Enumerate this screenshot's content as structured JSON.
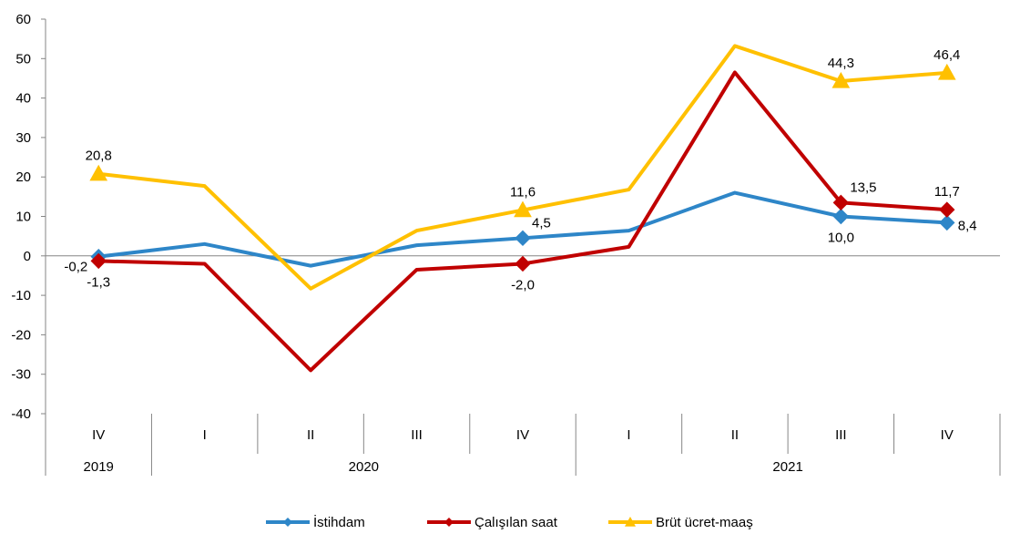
{
  "chart_data": {
    "type": "line",
    "title": "",
    "xlabel": "",
    "ylabel": "",
    "ylim": [
      -40,
      60
    ],
    "yticks": [
      -40,
      -30,
      -20,
      -10,
      0,
      10,
      20,
      30,
      40,
      50,
      60
    ],
    "ytick_labels": [
      "-40",
      "-30",
      "-20",
      "-10",
      "0",
      "10",
      "20",
      "30",
      "40",
      "50",
      "60"
    ],
    "grid": false,
    "legend_position": "bottom",
    "categories": [
      "IV",
      "I",
      "II",
      "III",
      "IV",
      "I",
      "II",
      "III",
      "IV"
    ],
    "year_groups": [
      {
        "label": "2019",
        "span": 1
      },
      {
        "label": "2020",
        "span": 4
      },
      {
        "label": "2021",
        "span": 4
      }
    ],
    "series": [
      {
        "name": "İstihdam",
        "color": "#2E86C8",
        "marker": "diamond",
        "values": [
          -0.2,
          3.0,
          -2.5,
          2.7,
          4.5,
          6.4,
          16.0,
          10.0,
          8.4
        ],
        "markers_at": [
          0,
          4,
          7,
          8
        ],
        "labels": [
          {
            "index": 0,
            "text": "-0,2",
            "pos": "left"
          },
          {
            "index": 4,
            "text": "4,5",
            "pos": "above-right"
          },
          {
            "index": 7,
            "text": "10,0",
            "pos": "below"
          },
          {
            "index": 8,
            "text": "8,4",
            "pos": "right"
          }
        ]
      },
      {
        "name": "Çalışılan saat",
        "color": "#C00000",
        "marker": "diamond",
        "values": [
          -1.3,
          -2.0,
          -29.0,
          -3.5,
          -2.0,
          2.3,
          46.5,
          13.5,
          11.7
        ],
        "markers_at": [
          0,
          4,
          7,
          8
        ],
        "labels": [
          {
            "index": 0,
            "text": "-1,3",
            "pos": "below"
          },
          {
            "index": 4,
            "text": "-2,0",
            "pos": "below"
          },
          {
            "index": 7,
            "text": "13,5",
            "pos": "above-right"
          },
          {
            "index": 8,
            "text": "11,7",
            "pos": "above"
          }
        ]
      },
      {
        "name": "Brüt ücret-maaş",
        "color": "#FFC000",
        "marker": "triangle",
        "values": [
          20.8,
          17.7,
          -8.3,
          6.4,
          11.6,
          16.8,
          53.2,
          44.3,
          46.4
        ],
        "markers_at": [
          0,
          4,
          7,
          8
        ],
        "labels": [
          {
            "index": 0,
            "text": "20,8",
            "pos": "above"
          },
          {
            "index": 4,
            "text": "11,6",
            "pos": "above"
          },
          {
            "index": 7,
            "text": "44,3",
            "pos": "above"
          },
          {
            "index": 8,
            "text": "46,4",
            "pos": "above"
          }
        ]
      }
    ]
  }
}
